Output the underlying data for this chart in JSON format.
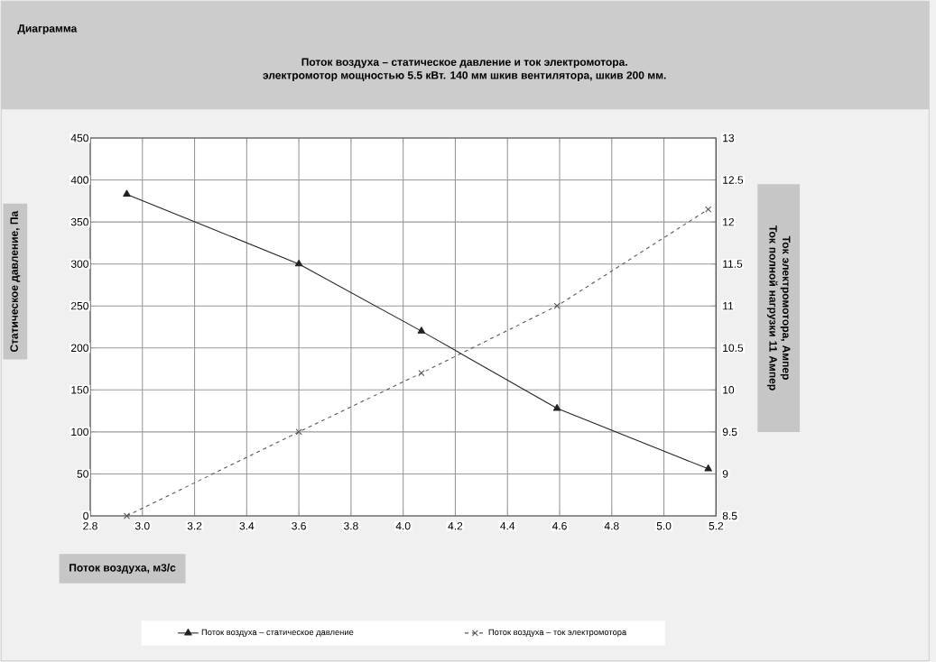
{
  "chart_data": {
    "type": "line",
    "title": "Поток воздуха – статическое давление и ток электромотора.",
    "subtitle": "электромотор мощностью 5.5 кВт. 140 мм шкив вентилятора, шкив 200 мм.",
    "annotations": [
      "Диаграмма"
    ],
    "xlabel": "Поток воздуха, м3/с",
    "ylabel": "Статическое давление, Па",
    "y2label": "Ток электромотора, Ампер Ток полной нагрузки 11 Ампер",
    "x": [
      2.94,
      3.6,
      4.07,
      4.59,
      5.17
    ],
    "series": [
      {
        "name": "Поток воздуха – статическое давление",
        "color": "#222222",
        "values": [
          383,
          300,
          220,
          128,
          56
        ],
        "marker": "triangle",
        "line_style": "solid"
      },
      {
        "name": "Поток воздуха – ток электромотора",
        "color": "#555555",
        "values": [
          8.5,
          9.5,
          10.2,
          11.0,
          12.15
        ],
        "marker": "cross",
        "line_style": "dashed",
        "axis": "y2"
      }
    ],
    "xlim": [
      2.8,
      5.2
    ],
    "xticks": [
      {
        "value": 2.8,
        "label": "2.8"
      },
      {
        "value": 3.0,
        "label": "3.0"
      },
      {
        "value": 3.2,
        "label": "3.2"
      },
      {
        "value": 3.4,
        "label": "3.4"
      },
      {
        "value": 3.6,
        "label": "3.6"
      },
      {
        "value": 3.8,
        "label": "3.8"
      },
      {
        "value": 4.0,
        "label": "4.0"
      },
      {
        "value": 4.2,
        "label": "4.2"
      },
      {
        "value": 4.4,
        "label": "4.4"
      },
      {
        "value": 4.6,
        "label": "4.6"
      },
      {
        "value": 4.8,
        "label": "4.8"
      },
      {
        "value": 5.0,
        "label": "5.0"
      },
      {
        "value": 5.2,
        "label": "5.2"
      }
    ],
    "ylim": [
      0,
      450
    ],
    "yticks": [
      0,
      50,
      100,
      150,
      200,
      250,
      300,
      350,
      400,
      450
    ],
    "y2lim": [
      8.5,
      13
    ],
    "y2ticks": [
      8.5,
      9,
      9.5,
      10,
      10.5,
      11,
      11.5,
      12,
      12.5,
      13
    ],
    "grid": true,
    "legend": "bottom"
  }
}
